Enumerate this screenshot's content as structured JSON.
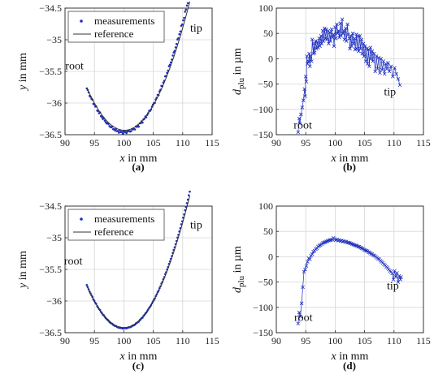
{
  "figure": {
    "colors": {
      "measurement": "#1f2fbf",
      "reference": "#333333",
      "grid": "#d6d6d6"
    }
  },
  "chart_data": [
    {
      "type": "scatter",
      "panel_label": "(a)",
      "xlabel_pre": "x",
      "xlabel_post": " in mm",
      "ylabel_pre": "y",
      "ylabel_post": " in mm",
      "xlim": [
        90,
        115
      ],
      "ylim": [
        -36.5,
        -34.5
      ],
      "xticks": [
        "90",
        "95",
        "100",
        "105",
        "110",
        "115"
      ],
      "yticks": [
        "-36.5",
        "-36",
        "-35.5",
        "-35",
        "-34.5"
      ],
      "grid": true,
      "legend": {
        "placement": "top-left",
        "entries": [
          "measurements",
          "reference"
        ]
      },
      "annotations": [
        {
          "text": "root",
          "x": 91.6,
          "y": -35.47
        },
        {
          "text": "tip",
          "x": 112.3,
          "y": -34.87
        }
      ],
      "series": [
        {
          "name": "measurements",
          "kind": "points",
          "values": {
            "start": 93.7,
            "end": 111.2,
            "n": 110,
            "vertex": 100.0,
            "min": -36.46,
            "a": 0.0174,
            "jitter": 0.025
          }
        },
        {
          "name": "reference",
          "kind": "line",
          "values": {
            "start": 93.7,
            "end": 111.2,
            "vertex": 100.1,
            "min": -36.43,
            "a": 0.0165
          }
        }
      ]
    },
    {
      "type": "line",
      "panel_label": "(b)",
      "xlabel_pre": "x",
      "xlabel_post": " in mm",
      "ylabel_pre": "d",
      "ylabel_sub": "plu",
      "ylabel_post": " in µm",
      "xlim": [
        90,
        115
      ],
      "ylim": [
        -150,
        100
      ],
      "xticks": [
        "90",
        "95",
        "100",
        "105",
        "110",
        "115"
      ],
      "yticks": [
        "-150",
        "-100",
        "-50",
        "0",
        "50",
        "100"
      ],
      "grid": true,
      "annotations": [
        {
          "text": "root",
          "x": 94.5,
          "y": -138
        },
        {
          "text": "tip",
          "x": 109.3,
          "y": -72
        }
      ],
      "series": [
        {
          "name": "",
          "values": [
            [
              93.7,
              -145
            ],
            [
              93.9,
              -118
            ],
            [
              94.0,
              -128
            ],
            [
              94.2,
              -110
            ],
            [
              94.4,
              -96
            ],
            [
              94.6,
              -82
            ],
            [
              94.8,
              -60
            ],
            [
              94.9,
              -74
            ],
            [
              95.0,
              -35
            ],
            [
              95.1,
              -45
            ],
            [
              95.2,
              5
            ],
            [
              95.3,
              -10
            ],
            [
              95.5,
              -5
            ],
            [
              95.6,
              10
            ],
            [
              95.7,
              -15
            ],
            [
              95.8,
              5
            ],
            [
              96.0,
              -5
            ],
            [
              96.1,
              38
            ],
            [
              96.3,
              10
            ],
            [
              96.4,
              30
            ],
            [
              96.5,
              12
            ],
            [
              96.7,
              35
            ],
            [
              96.8,
              20
            ],
            [
              97.0,
              33
            ],
            [
              97.1,
              22
            ],
            [
              97.3,
              40
            ],
            [
              97.4,
              25
            ],
            [
              97.6,
              45
            ],
            [
              97.7,
              30
            ],
            [
              97.9,
              55
            ],
            [
              98.0,
              35
            ],
            [
              98.2,
              60
            ],
            [
              98.3,
              40
            ],
            [
              98.5,
              58
            ],
            [
              98.6,
              38
            ],
            [
              98.8,
              55
            ],
            [
              98.9,
              30
            ],
            [
              99.1,
              52
            ],
            [
              99.2,
              35
            ],
            [
              99.4,
              58
            ],
            [
              99.5,
              42
            ],
            [
              99.7,
              48
            ],
            [
              99.8,
              25
            ],
            [
              100.0,
              62
            ],
            [
              100.1,
              40
            ],
            [
              100.3,
              68
            ],
            [
              100.4,
              50
            ],
            [
              100.6,
              55
            ],
            [
              100.7,
              42
            ],
            [
              100.9,
              70
            ],
            [
              101.0,
              45
            ],
            [
              101.2,
              78
            ],
            [
              101.3,
              50
            ],
            [
              101.5,
              55
            ],
            [
              101.6,
              38
            ],
            [
              101.8,
              60
            ],
            [
              101.9,
              35
            ],
            [
              102.1,
              68
            ],
            [
              102.2,
              48
            ],
            [
              102.4,
              40
            ],
            [
              102.5,
              20
            ],
            [
              102.7,
              45
            ],
            [
              102.8,
              25
            ],
            [
              103.0,
              50
            ],
            [
              103.1,
              30
            ],
            [
              103.3,
              40
            ],
            [
              103.4,
              18
            ],
            [
              103.6,
              48
            ],
            [
              103.7,
              20
            ],
            [
              103.9,
              45
            ],
            [
              104.0,
              15
            ],
            [
              104.2,
              45
            ],
            [
              104.3,
              20
            ],
            [
              104.5,
              38
            ],
            [
              104.6,
              10
            ],
            [
              104.8,
              30
            ],
            [
              104.9,
              5
            ],
            [
              105.1,
              25
            ],
            [
              105.2,
              -5
            ],
            [
              105.4,
              20
            ],
            [
              105.5,
              -10
            ],
            [
              105.7,
              18
            ],
            [
              105.8,
              -15
            ],
            [
              106.0,
              22
            ],
            [
              106.1,
              0
            ],
            [
              106.3,
              15
            ],
            [
              106.4,
              -5
            ],
            [
              106.6,
              10
            ],
            [
              106.8,
              -25
            ],
            [
              107.0,
              5
            ],
            [
              107.2,
              -20
            ],
            [
              107.4,
              2
            ],
            [
              107.6,
              -28
            ],
            [
              107.8,
              0
            ],
            [
              108.0,
              -22
            ],
            [
              108.2,
              -5
            ],
            [
              108.4,
              -30
            ],
            [
              108.6,
              -10
            ],
            [
              108.8,
              -20
            ],
            [
              109.0,
              -8
            ],
            [
              109.2,
              -25
            ],
            [
              109.5,
              -15
            ],
            [
              109.8,
              -35
            ],
            [
              110.1,
              -18
            ],
            [
              110.4,
              -30
            ],
            [
              110.7,
              -40
            ],
            [
              111.0,
              -52
            ]
          ]
        }
      ]
    },
    {
      "type": "scatter",
      "panel_label": "(c)",
      "xlabel_pre": "x",
      "xlabel_post": " in mm",
      "ylabel_pre": "y",
      "ylabel_post": " in mm",
      "xlim": [
        90,
        115
      ],
      "ylim": [
        -36.5,
        -34.5
      ],
      "xticks": [
        "90",
        "95",
        "100",
        "105",
        "110",
        "115"
      ],
      "yticks": [
        "-36.5",
        "-36",
        "-35.5",
        "-35",
        "-34.5"
      ],
      "grid": true,
      "legend": {
        "placement": "top-left",
        "entries": [
          "measurements",
          "reference"
        ]
      },
      "annotations": [
        {
          "text": "root",
          "x": 91.4,
          "y": -35.42
        },
        {
          "text": "tip",
          "x": 112.3,
          "y": -34.85
        }
      ],
      "series": [
        {
          "name": "measurements",
          "kind": "points",
          "values": {
            "start": 93.7,
            "end": 111.2,
            "n": 110,
            "vertex": 100.0,
            "min": -36.43,
            "a": 0.0172,
            "jitter": 0.006
          }
        },
        {
          "name": "reference",
          "kind": "line",
          "values": {
            "start": 93.7,
            "end": 111.2,
            "vertex": 100.0,
            "min": -36.42,
            "a": 0.0166
          }
        }
      ]
    },
    {
      "type": "line",
      "panel_label": "(d)",
      "xlabel_pre": "x",
      "xlabel_post": " in mm",
      "ylabel_pre": "d",
      "ylabel_sub": "plu",
      "ylabel_post": " in µm",
      "xlim": [
        90,
        115
      ],
      "ylim": [
        -150,
        100
      ],
      "xticks": [
        "90",
        "95",
        "100",
        "105",
        "110",
        "115"
      ],
      "yticks": [
        "-150",
        "-100",
        "-50",
        "0",
        "50",
        "100"
      ],
      "grid": true,
      "annotations": [
        {
          "text": "root",
          "x": 94.6,
          "y": -127
        },
        {
          "text": "tip",
          "x": 109.8,
          "y": -64
        }
      ],
      "series": [
        {
          "name": "",
          "values": [
            [
              93.7,
              -132
            ],
            [
              93.9,
              -110
            ],
            [
              94.1,
              -118
            ],
            [
              94.3,
              -92
            ],
            [
              94.5,
              -60
            ],
            [
              94.7,
              -30
            ],
            [
              94.9,
              -25
            ],
            [
              95.1,
              -18
            ],
            [
              95.3,
              -10
            ],
            [
              95.5,
              -3
            ],
            [
              95.7,
              -5
            ],
            [
              95.9,
              2
            ],
            [
              96.1,
              5
            ],
            [
              96.3,
              10
            ],
            [
              96.5,
              12
            ],
            [
              96.7,
              15
            ],
            [
              96.9,
              17
            ],
            [
              97.1,
              20
            ],
            [
              97.3,
              22
            ],
            [
              97.5,
              23
            ],
            [
              97.7,
              25
            ],
            [
              97.9,
              27
            ],
            [
              98.1,
              28
            ],
            [
              98.3,
              29
            ],
            [
              98.5,
              30
            ],
            [
              98.7,
              31
            ],
            [
              98.9,
              32
            ],
            [
              99.1,
              33
            ],
            [
              99.3,
              33
            ],
            [
              99.5,
              34
            ],
            [
              99.7,
              37
            ],
            [
              99.9,
              35
            ],
            [
              100.1,
              33
            ],
            [
              100.3,
              34
            ],
            [
              100.5,
              32
            ],
            [
              100.7,
              33
            ],
            [
              100.9,
              31
            ],
            [
              101.1,
              32
            ],
            [
              101.3,
              30
            ],
            [
              101.5,
              31
            ],
            [
              101.7,
              29
            ],
            [
              101.9,
              30
            ],
            [
              102.1,
              28
            ],
            [
              102.3,
              28
            ],
            [
              102.5,
              27
            ],
            [
              102.7,
              26
            ],
            [
              102.9,
              25
            ],
            [
              103.1,
              24
            ],
            [
              103.3,
              23
            ],
            [
              103.5,
              22
            ],
            [
              103.7,
              22
            ],
            [
              103.9,
              20
            ],
            [
              104.1,
              20
            ],
            [
              104.3,
              18
            ],
            [
              104.5,
              17
            ],
            [
              104.7,
              16
            ],
            [
              104.9,
              14
            ],
            [
              105.1,
              13
            ],
            [
              105.3,
              12
            ],
            [
              105.5,
              11
            ],
            [
              105.7,
              9
            ],
            [
              105.9,
              8
            ],
            [
              106.1,
              6
            ],
            [
              106.3,
              5
            ],
            [
              106.5,
              3
            ],
            [
              106.7,
              2
            ],
            [
              106.9,
              0
            ],
            [
              107.1,
              -2
            ],
            [
              107.3,
              -4
            ],
            [
              107.5,
              -5
            ],
            [
              107.7,
              -8
            ],
            [
              107.9,
              -10
            ],
            [
              108.1,
              -12
            ],
            [
              108.3,
              -15
            ],
            [
              108.5,
              -17
            ],
            [
              108.7,
              -20
            ],
            [
              108.9,
              -22
            ],
            [
              109.1,
              -25
            ],
            [
              109.3,
              -28
            ],
            [
              109.5,
              -30
            ],
            [
              109.7,
              -33
            ],
            [
              109.9,
              -45
            ],
            [
              110.1,
              -28
            ],
            [
              110.3,
              -40
            ],
            [
              110.5,
              -32
            ],
            [
              110.7,
              -50
            ],
            [
              110.9,
              -38
            ],
            [
              111.1,
              -45
            ],
            [
              111.2,
              -40
            ]
          ]
        }
      ]
    }
  ]
}
